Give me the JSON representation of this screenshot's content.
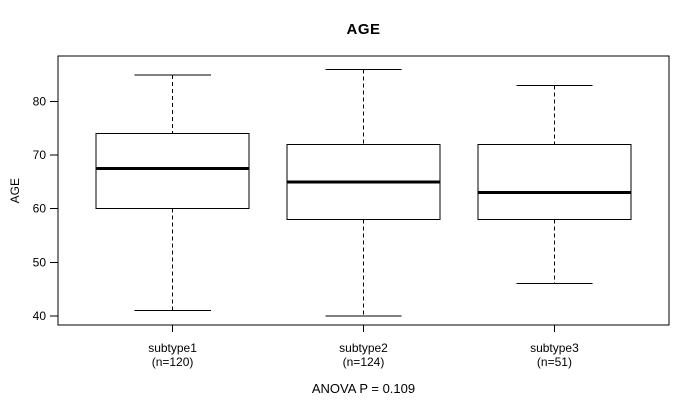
{
  "figure": {
    "title": "AGE",
    "y_axis_label": "AGE",
    "annotation": "ANOVA P = 0.109"
  },
  "chart_data": {
    "type": "box",
    "title": "AGE",
    "xlabel": "",
    "ylabel": "AGE",
    "annotation": "ANOVA P = 0.109",
    "categories": [
      "subtype1",
      "subtype2",
      "subtype3"
    ],
    "category_sublabels": [
      "(n=120)",
      "(n=124)",
      "(n=51)"
    ],
    "series": [
      {
        "name": "subtype1",
        "n": 120,
        "min": 41,
        "q1": 60,
        "median": 67.5,
        "q3": 74,
        "max": 85
      },
      {
        "name": "subtype2",
        "n": 124,
        "min": 40,
        "q1": 58,
        "median": 65,
        "q3": 72,
        "max": 86
      },
      {
        "name": "subtype3",
        "n": 51,
        "min": 46,
        "q1": 58,
        "median": 63,
        "q3": 72,
        "max": 83
      }
    ],
    "yticks": [
      40,
      50,
      60,
      70,
      80
    ],
    "ylim": [
      38.3,
      88.5
    ],
    "xlim": [
      0.4,
      3.6
    ],
    "positions": [
      1,
      2,
      3
    ],
    "box_width": 0.8,
    "whisker_style": "dashed",
    "grid": "off",
    "legend": "none",
    "colors": {
      "box_border": "#000000",
      "median": "#000000",
      "frame": "#000000",
      "background": "#ffffff",
      "text": "#000000"
    }
  }
}
